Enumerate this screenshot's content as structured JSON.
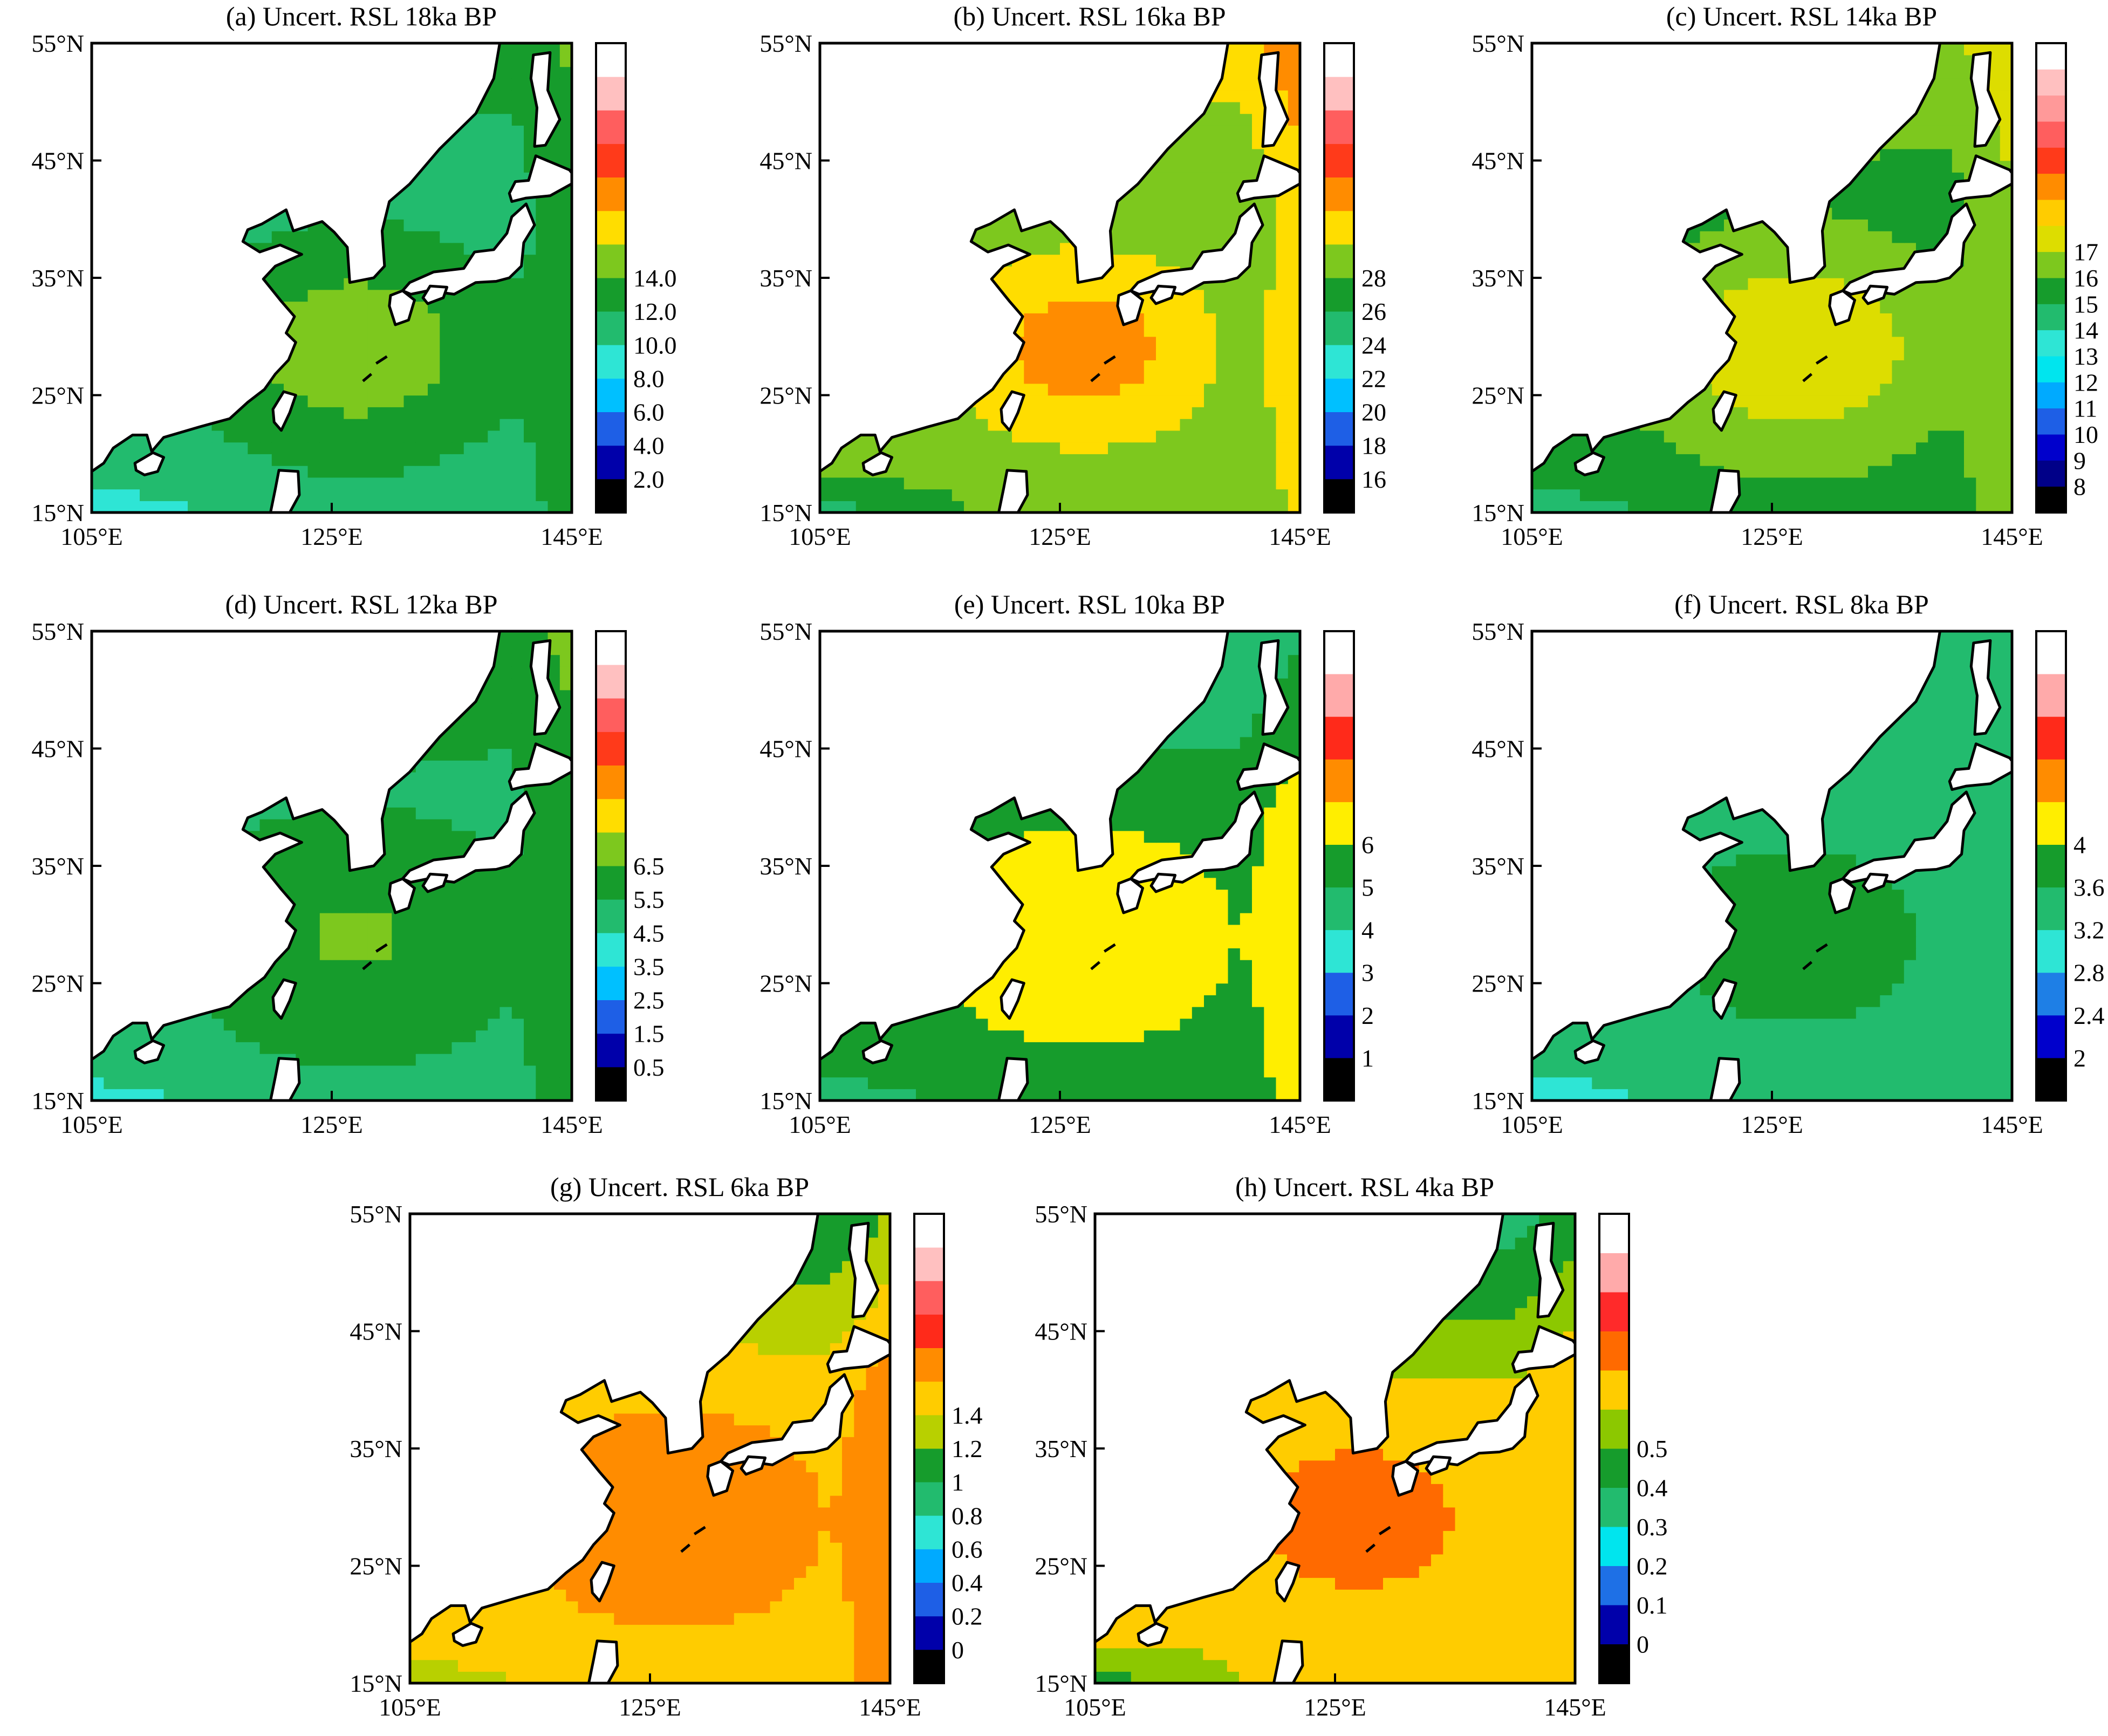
{
  "axes": {
    "lat_labels": [
      "55°N",
      "45°N",
      "35°N",
      "25°N",
      "15°N"
    ],
    "lon_labels": [
      "105°E",
      "125°E",
      "145°E"
    ]
  },
  "panels": [
    {
      "title": "(a) Uncert. RSL 18ka BP",
      "colors": [
        "#000000",
        "#0000aa",
        "#1e5fe6",
        "#00c0ff",
        "#2ee5d5",
        "#22bb6e",
        "#169c2c",
        "#7dc81e",
        "#ffdd00",
        "#ff8c00",
        "#ff3a1a",
        "#ff5e5e",
        "#ffc0c0",
        "#ffffff"
      ],
      "labels": [
        "2.0",
        "4.0",
        "6.0",
        "8.0",
        "10.0",
        "12.0",
        "14.0"
      ],
      "field": {
        "base": 5,
        "amp": 2.2,
        "north": 0.8,
        "hot": 0.6
      }
    },
    {
      "title": "(b) Uncert. RSL 16ka BP",
      "colors": [
        "#000000",
        "#0000aa",
        "#1e5fe6",
        "#00c0ff",
        "#2ee5d5",
        "#22bb6e",
        "#169c2c",
        "#7dc81e",
        "#ffdd00",
        "#ff8c00",
        "#ff3a1a",
        "#ff5e5e",
        "#ffc0c0",
        "#ffffff"
      ],
      "labels": [
        "16",
        "18",
        "20",
        "22",
        "24",
        "26",
        "28"
      ],
      "field": {
        "base": 6.5,
        "amp": 2.5,
        "north": 1.5,
        "hot": 0.9
      }
    },
    {
      "title": "(c) Uncert. RSL 14ka BP",
      "colors": [
        "#000000",
        "#000088",
        "#0000cc",
        "#1e5fe6",
        "#00aaff",
        "#00e5ee",
        "#2ee5d5",
        "#22bb6e",
        "#169c2c",
        "#7dc81e",
        "#dddd00",
        "#ffcc00",
        "#ff8c00",
        "#ff3a1a",
        "#ff5e5e",
        "#ff9999",
        "#ffc0c0",
        "#ffffff"
      ],
      "labels": [
        "8",
        "9",
        "10",
        "11",
        "12",
        "13",
        "14",
        "15",
        "16",
        "17"
      ],
      "field": {
        "base": 8,
        "amp": 2.5,
        "north": 1.2,
        "hot": 0.8
      }
    },
    {
      "title": "(d) Uncert. RSL 12ka BP",
      "colors": [
        "#000000",
        "#0000aa",
        "#1e5fe6",
        "#00c0ff",
        "#2ee5d5",
        "#22bb6e",
        "#169c2c",
        "#7dc81e",
        "#ffdd00",
        "#ff8c00",
        "#ff3a1a",
        "#ff5e5e",
        "#ffc0c0",
        "#ffffff"
      ],
      "labels": [
        "0.5",
        "1.5",
        "2.5",
        "3.5",
        "4.5",
        "5.5",
        "6.5"
      ],
      "field": {
        "base": 5.2,
        "amp": 1.4,
        "north": 0.9,
        "hot": 0.5
      }
    },
    {
      "title": "(e) Uncert. RSL 10ka BP",
      "colors": [
        "#000000",
        "#0000aa",
        "#1e5fe6",
        "#2ee5d5",
        "#22bb6e",
        "#169c2c",
        "#ffee00",
        "#ff8c00",
        "#ff2a1a",
        "#ffaaaa",
        "#ffffff"
      ],
      "labels": [
        "1",
        "2",
        "3",
        "4",
        "5",
        "6"
      ],
      "field": {
        "base": 5,
        "amp": 1.5,
        "north": -1.5,
        "hot": 0.6
      }
    },
    {
      "title": "(f) Uncert. RSL 8ka BP",
      "colors": [
        "#000000",
        "#0000cc",
        "#1e7fe6",
        "#2ee5d5",
        "#22bb6e",
        "#169c2c",
        "#ffee00",
        "#ff8c00",
        "#ff2a1a",
        "#ffaaaa",
        "#ffffff"
      ],
      "labels": [
        "2",
        "2.4",
        "2.8",
        "3.2",
        "3.6",
        "4"
      ],
      "field": {
        "base": 4,
        "amp": 1.0,
        "north": -0.5,
        "hot": 0.2
      }
    },
    {
      "title": "(g) Uncert. RSL 6ka BP",
      "colors": [
        "#000000",
        "#0000aa",
        "#1e5fe6",
        "#00aaff",
        "#2ee5d5",
        "#22bb6e",
        "#169c2c",
        "#b8d000",
        "#ffcc00",
        "#ff8c00",
        "#ff2a1a",
        "#ff5e5e",
        "#ffc0c0",
        "#ffffff"
      ],
      "labels": [
        "0",
        "0.2",
        "0.4",
        "0.6",
        "0.8",
        "1",
        "1.2",
        "1.4"
      ],
      "field": {
        "base": 8,
        "amp": 1.5,
        "north": -2.5,
        "hot": 0.7
      }
    },
    {
      "title": "(h) Uncert. RSL 4ka BP",
      "colors": [
        "#000000",
        "#0000aa",
        "#1e70e6",
        "#00e5ee",
        "#22bb6e",
        "#169c2c",
        "#8cc800",
        "#ffcc00",
        "#ff6a00",
        "#ff2a2a",
        "#ffaaaa",
        "#ffffff"
      ],
      "labels": [
        "0",
        "0.1",
        "0.2",
        "0.3",
        "0.4",
        "0.5"
      ],
      "field": {
        "base": 6.5,
        "amp": 1.5,
        "north": -2.5,
        "hot": 0.6
      }
    }
  ]
}
